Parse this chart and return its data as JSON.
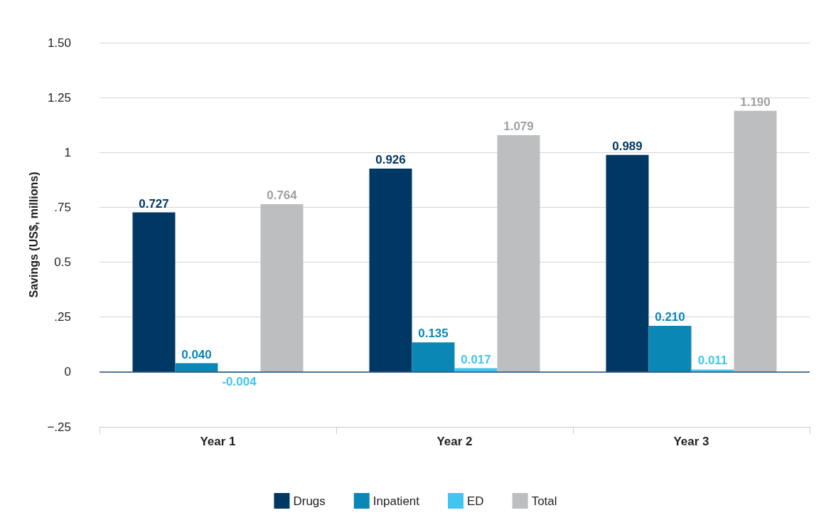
{
  "chart_data": {
    "type": "bar",
    "ylabel": "Savings (US$, millions)",
    "categories": [
      "Year 1",
      "Year 2",
      "Year 3"
    ],
    "series": [
      {
        "name": "Drugs",
        "color": "#003865",
        "values": [
          0.727,
          0.926,
          0.989
        ],
        "value_labels": [
          "0.727",
          "0.926",
          "0.989"
        ]
      },
      {
        "name": "Inpatient",
        "color": "#0a87b5",
        "values": [
          0.04,
          0.135,
          0.21
        ],
        "value_labels": [
          "0.040",
          "0.135",
          "0.210"
        ]
      },
      {
        "name": "ED",
        "color": "#41c6f0",
        "values": [
          -0.004,
          0.017,
          0.011
        ],
        "value_labels": [
          "-0.004",
          "0.017",
          "0.011"
        ]
      },
      {
        "name": "Total",
        "color": "#bdbec0",
        "values": [
          0.764,
          1.079,
          1.19
        ],
        "value_labels": [
          "0.764",
          "1.079",
          "1.190"
        ]
      }
    ],
    "ylim": [
      -0.25,
      1.5
    ],
    "yticks": [
      {
        "value": -0.25,
        "label": "−.25"
      },
      0,
      {
        "value": 0.25,
        "label": ".25"
      },
      0.5,
      {
        "value": 0.75,
        "label": ".75"
      },
      1,
      1.25,
      {
        "value": 1.5,
        "label": "1.50"
      }
    ],
    "ref_lines": [
      {
        "axis": "y",
        "value": 0,
        "color": "#1f4e79"
      }
    ],
    "grid": "y",
    "legend": "bottom"
  }
}
